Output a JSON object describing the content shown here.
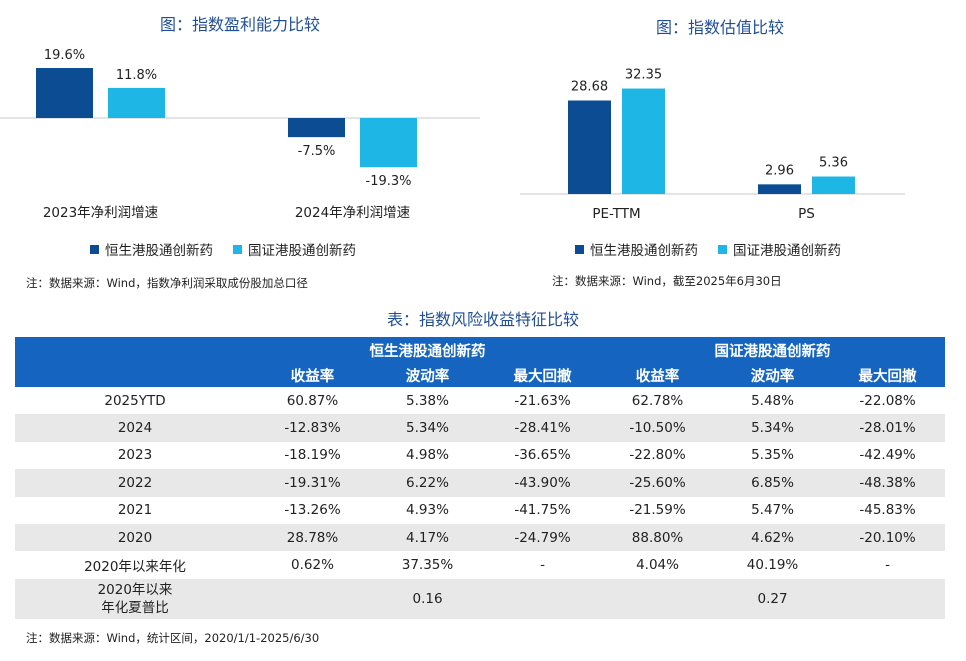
{
  "colors": {
    "hs": "#0b4c92",
    "gz": "#1eb6e4",
    "header": "#1565c0",
    "title": "#1f4e96",
    "stripe": "#e8e8e8"
  },
  "chart_data": [
    {
      "type": "bar",
      "title": "图：指数盈利能力比较",
      "categories": [
        "2023年净利润增速",
        "2024年净利润增速"
      ],
      "series": [
        {
          "name": "恒生港股通创新药",
          "values": [
            19.6,
            -7.5
          ],
          "labels": [
            "19.6%",
            "-7.5%"
          ]
        },
        {
          "name": "国证港股通创新药",
          "values": [
            11.8,
            -19.3
          ],
          "labels": [
            "11.8%",
            "-19.3%"
          ]
        }
      ],
      "note": "注：数据来源：Wind，指数净利润采取成份股加总口径"
    },
    {
      "type": "bar",
      "title": "图：指数估值比较",
      "categories": [
        "PE-TTM",
        "PS"
      ],
      "series": [
        {
          "name": "恒生港股通创新药",
          "values": [
            28.68,
            2.96
          ],
          "labels": [
            "28.68",
            "2.96"
          ]
        },
        {
          "name": "国证港股通创新药",
          "values": [
            32.35,
            5.36
          ],
          "labels": [
            "32.35",
            "5.36"
          ]
        }
      ],
      "note": "注：数据来源：Wind，截至2025年6月30日"
    },
    {
      "type": "table",
      "title": "表：指数风险收益特征比较",
      "groups": [
        "恒生港股通创新药",
        "国证港股通创新药"
      ],
      "columns": [
        "收益率",
        "波动率",
        "最大回撤",
        "收益率",
        "波动率",
        "最大回撤"
      ],
      "rows": [
        {
          "label": "2025YTD",
          "cells": [
            "60.87%",
            "5.38%",
            "-21.63%",
            "62.78%",
            "5.48%",
            "-22.08%"
          ]
        },
        {
          "label": "2024",
          "cells": [
            "-12.83%",
            "5.34%",
            "-28.41%",
            "-10.50%",
            "5.34%",
            "-28.01%"
          ]
        },
        {
          "label": "2023",
          "cells": [
            "-18.19%",
            "4.98%",
            "-36.65%",
            "-22.80%",
            "5.35%",
            "-42.49%"
          ]
        },
        {
          "label": "2022",
          "cells": [
            "-19.31%",
            "6.22%",
            "-43.90%",
            "-25.60%",
            "6.85%",
            "-48.38%"
          ]
        },
        {
          "label": "2021",
          "cells": [
            "-13.26%",
            "4.93%",
            "-41.75%",
            "-21.59%",
            "5.47%",
            "-45.83%"
          ]
        },
        {
          "label": "2020",
          "cells": [
            "28.78%",
            "4.17%",
            "-24.79%",
            "88.80%",
            "4.62%",
            "-20.10%"
          ]
        },
        {
          "label": "2020年以来年化",
          "cells": [
            "0.62%",
            "37.35%",
            "-",
            "4.04%",
            "40.19%",
            "-"
          ]
        }
      ],
      "sharpe": {
        "label_line1": "2020年以来",
        "label_line2": "年化夏普比",
        "hs": "0.16",
        "gz": "0.27"
      },
      "note": "注：数据来源：Wind，统计区间，2020/1/1-2025/6/30"
    }
  ]
}
